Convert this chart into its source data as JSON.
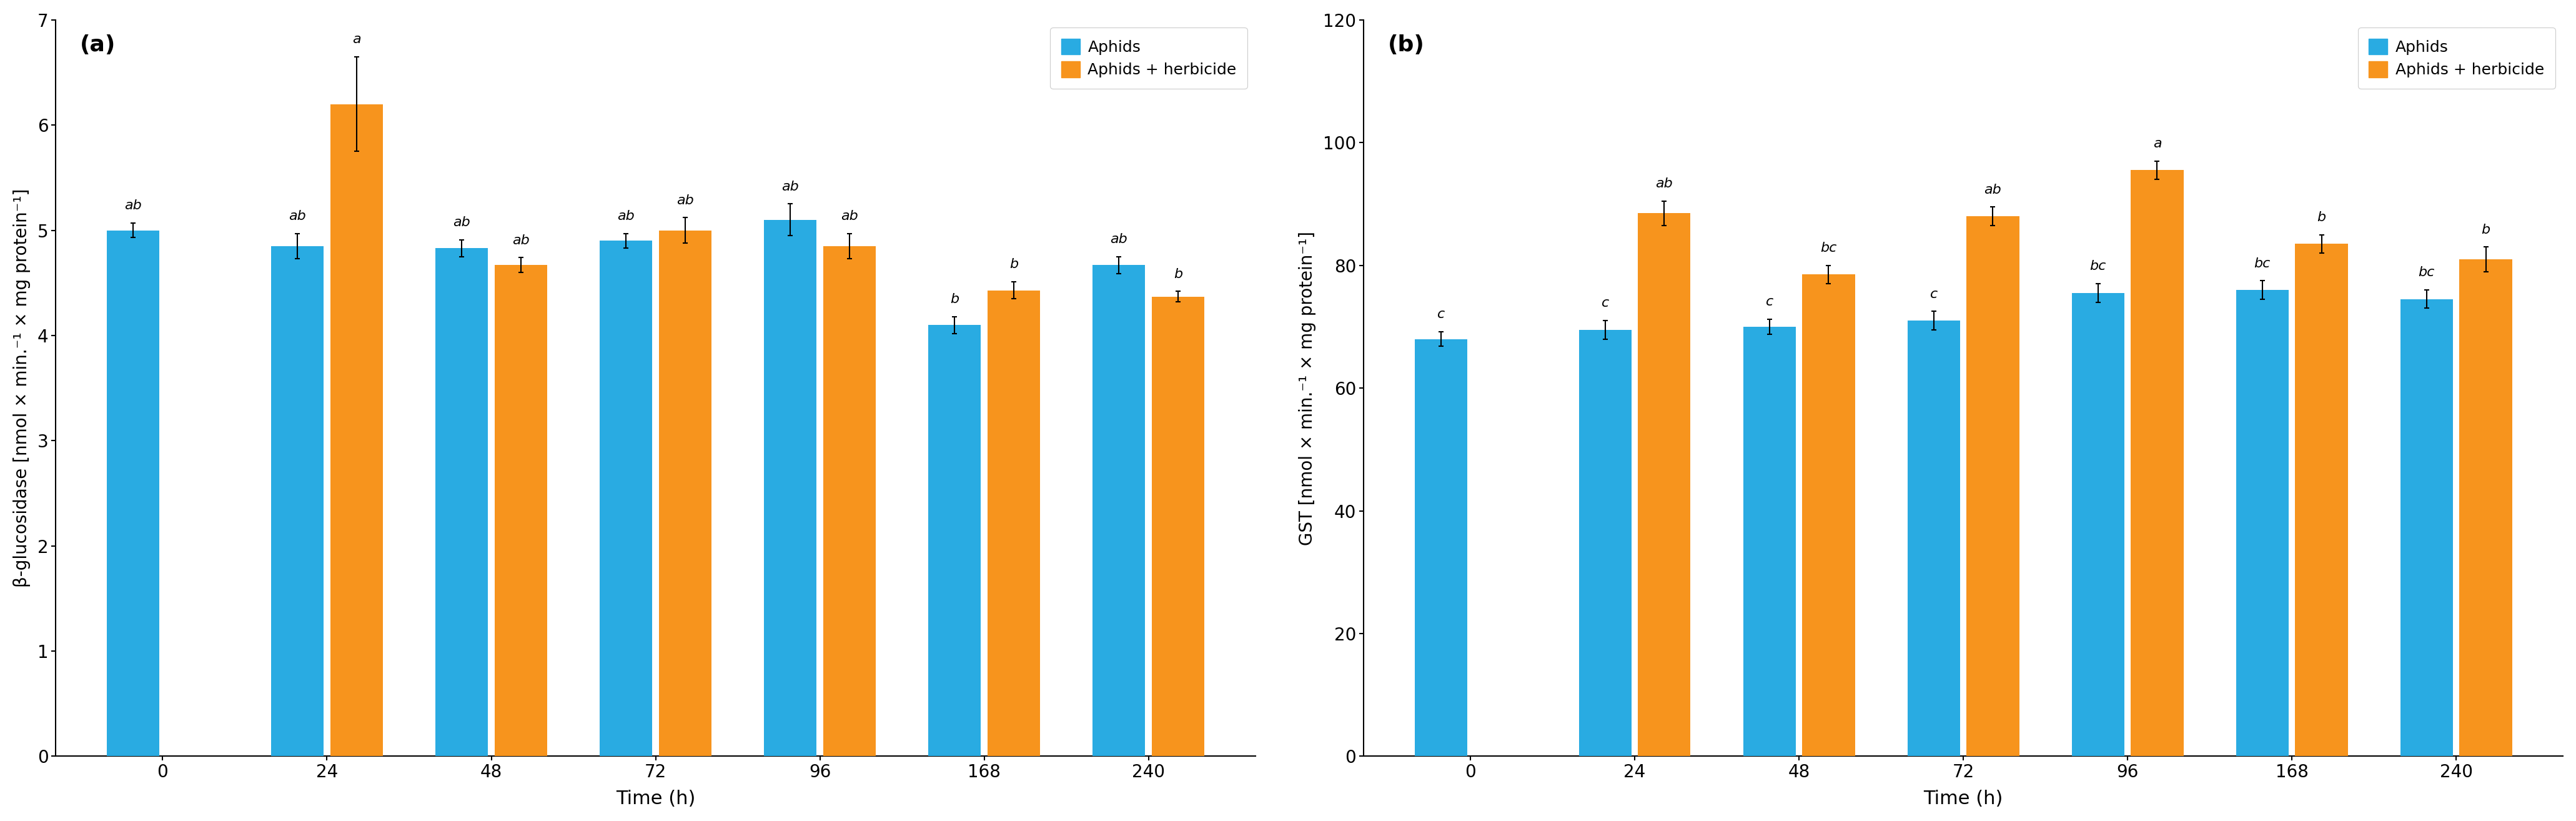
{
  "time_labels": [
    "0",
    "24",
    "48",
    "72",
    "96",
    "168",
    "240"
  ],
  "panel_a": {
    "title": "(a)",
    "ylabel": "β-glucosidase [nmol × min.⁻¹ × mg protein⁻¹]",
    "xlabel": "Time (h)",
    "ylim": [
      0,
      7
    ],
    "yticks": [
      0,
      1,
      2,
      3,
      4,
      5,
      6,
      7
    ],
    "aphids_values": [
      5.0,
      4.85,
      4.83,
      4.9,
      5.1,
      4.1,
      4.67
    ],
    "herbicide_values": [
      null,
      6.2,
      4.67,
      5.0,
      4.85,
      4.43,
      4.37
    ],
    "aphids_errors": [
      0.07,
      0.12,
      0.08,
      0.07,
      0.15,
      0.08,
      0.08
    ],
    "herbicide_errors": [
      null,
      0.45,
      0.07,
      0.12,
      0.12,
      0.08,
      0.05
    ],
    "aphids_labels": [
      "ab",
      "ab",
      "ab",
      "ab",
      "ab",
      "b",
      "ab"
    ],
    "herbicide_labels": [
      null,
      "a",
      "ab",
      "ab",
      "ab",
      "b",
      "b"
    ],
    "bar_color_aphids": "#29ABE2",
    "bar_color_herbicide": "#F7941D"
  },
  "panel_b": {
    "title": "(b)",
    "ylabel": "GST [nmol × min.⁻¹ × mg protein⁻¹]",
    "xlabel": "Time (h)",
    "ylim": [
      0,
      120
    ],
    "yticks": [
      0,
      20,
      40,
      60,
      80,
      100,
      120
    ],
    "aphids_values": [
      68.0,
      69.5,
      70.0,
      71.0,
      75.5,
      76.0,
      74.5
    ],
    "herbicide_values": [
      null,
      88.5,
      78.5,
      88.0,
      95.5,
      83.5,
      81.0
    ],
    "aphids_errors": [
      1.2,
      1.5,
      1.2,
      1.5,
      1.5,
      1.5,
      1.5
    ],
    "herbicide_errors": [
      null,
      2.0,
      1.5,
      1.5,
      1.5,
      1.5,
      2.0
    ],
    "aphids_labels": [
      "c",
      "c",
      "c",
      "c",
      "bc",
      "bc",
      "bc"
    ],
    "herbicide_labels": [
      null,
      "ab",
      "bc",
      "ab",
      "a",
      "b",
      "b"
    ],
    "bar_color_aphids": "#29ABE2",
    "bar_color_herbicide": "#F7941D"
  },
  "legend_aphids": "Aphids",
  "legend_herbicide": "Aphids + herbicide",
  "background_color": "#ffffff",
  "bar_width": 0.32,
  "bar_gap": 0.04
}
